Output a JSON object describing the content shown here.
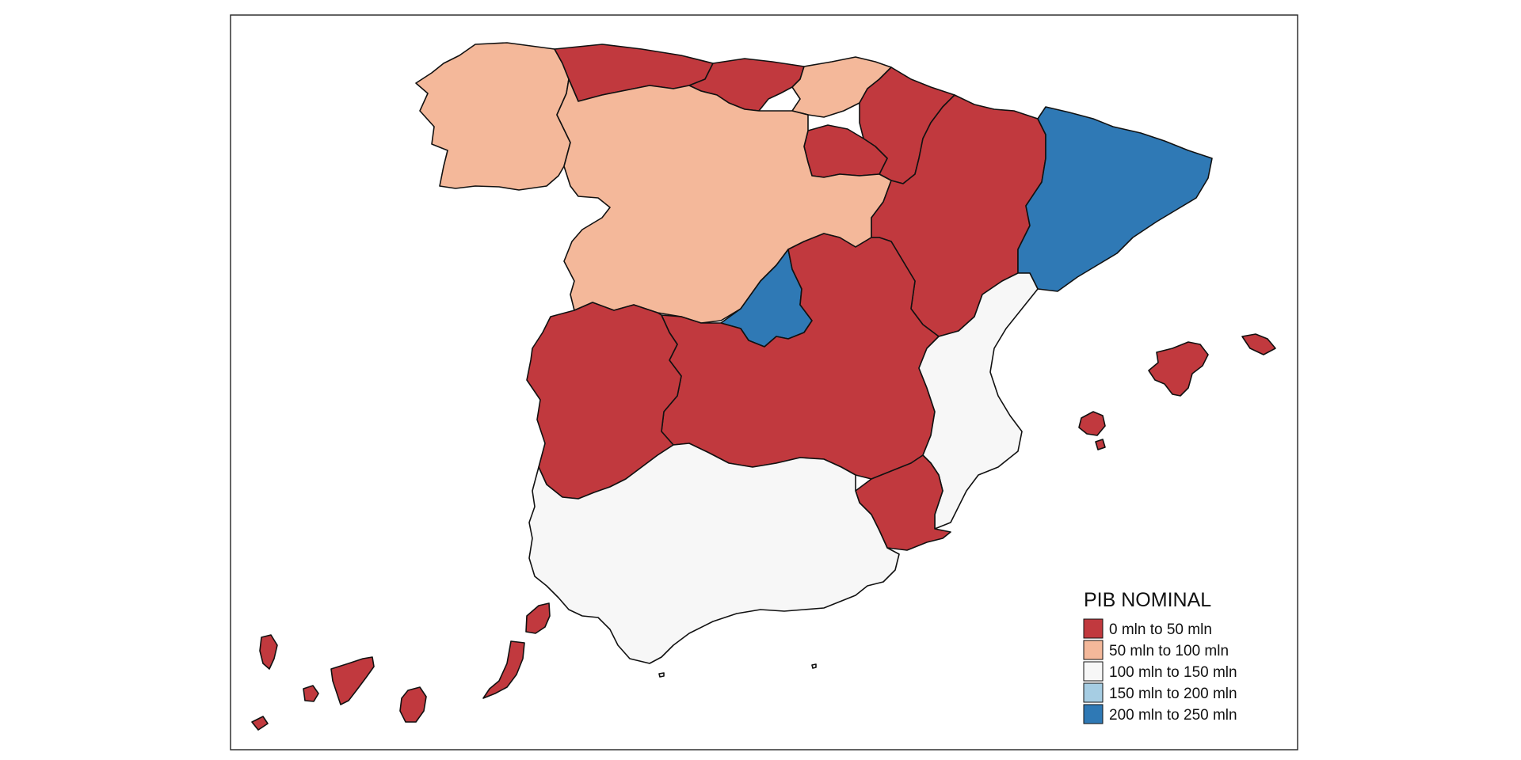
{
  "legend": {
    "title": "PIB NOMINAL",
    "classes": [
      {
        "label": "0 mln to 50 mln",
        "color": "#c1393e"
      },
      {
        "label": "50 mln to 100 mln",
        "color": "#f4b89a"
      },
      {
        "label": "100 mln to 150 mln",
        "color": "#f7f7f7"
      },
      {
        "label": "150 mln to 200 mln",
        "color": "#a6cde3"
      },
      {
        "label": "200 mln to 250 mln",
        "color": "#2f79b5"
      }
    ]
  },
  "regions": [
    {
      "id": "galicia",
      "class": 1
    },
    {
      "id": "asturias",
      "class": 0
    },
    {
      "id": "cantabria",
      "class": 0
    },
    {
      "id": "pais-vasco",
      "class": 1
    },
    {
      "id": "navarra",
      "class": 0
    },
    {
      "id": "la-rioja",
      "class": 0
    },
    {
      "id": "castilla-y-leon",
      "class": 1
    },
    {
      "id": "aragon",
      "class": 0
    },
    {
      "id": "cataluna",
      "class": 4
    },
    {
      "id": "madrid",
      "class": 4
    },
    {
      "id": "castilla-la-mancha",
      "class": 0
    },
    {
      "id": "extremadura",
      "class": 0
    },
    {
      "id": "valencia",
      "class": 2
    },
    {
      "id": "murcia",
      "class": 0
    },
    {
      "id": "andalucia",
      "class": 2
    },
    {
      "id": "baleares",
      "class": 0
    },
    {
      "id": "canarias",
      "class": 0
    }
  ]
}
